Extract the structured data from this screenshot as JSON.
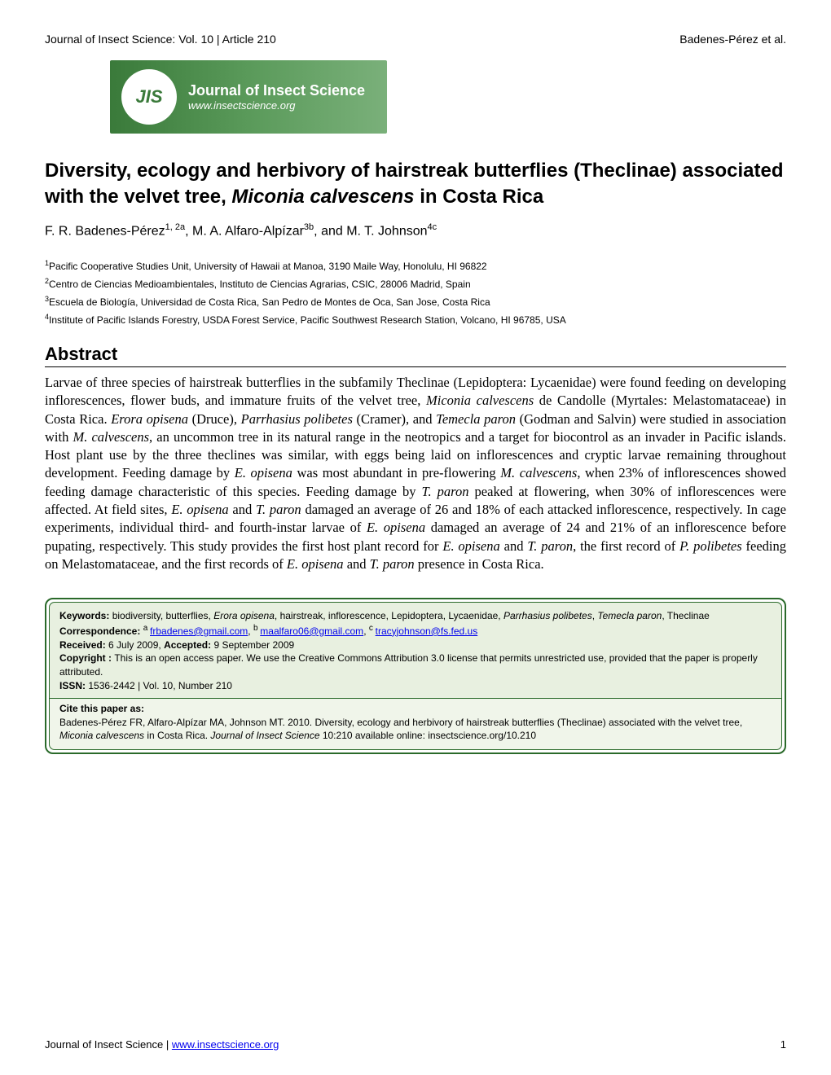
{
  "header": {
    "left": "Journal of Insect Science: Vol. 10 | Article 210",
    "right": "Badenes-Pérez et al."
  },
  "banner": {
    "logo_text": "JIS",
    "title": "Journal of Insect Science",
    "subtitle": "www.insectscience.org",
    "bg_gradient_start": "#3a7a3a",
    "bg_gradient_end": "#7ab07a"
  },
  "title": {
    "prefix": "Diversity, ecology and herbivory of hairstreak butterflies (Theclinae) associated with the velvet tree, ",
    "italic": "Miconia calvescens",
    "suffix": " in Costa Rica"
  },
  "authors": {
    "a1_name": "F. R. Badenes-Pérez",
    "a1_sup": "1, 2a",
    "a2_name": "M. A. Alfaro-Alpízar",
    "a2_sup": "3b",
    "a3_name": "M. T. Johnson",
    "a3_sup": "4c",
    "sep1": ", ",
    "sep2": ", and "
  },
  "affiliations": {
    "a1_sup": "1",
    "a1": "Pacific Cooperative Studies Unit, University of Hawaii at Manoa, 3190 Maile Way, Honolulu, HI 96822",
    "a2_sup": "2",
    "a2": "Centro de Ciencias Medioambientales, Instituto de Ciencias Agrarias, CSIC, 28006 Madrid, Spain",
    "a3_sup": "3",
    "a3": "Escuela de Biología, Universidad de Costa Rica, San Pedro de Montes de Oca, San Jose, Costa Rica",
    "a4_sup": "4",
    "a4": "Institute of Pacific Islands Forestry, USDA Forest Service, Pacific Southwest Research Station, Volcano, HI 96785, USA"
  },
  "abstract": {
    "heading": "Abstract",
    "p1": "Larvae of three species of hairstreak butterflies in the subfamily Theclinae (Lepidoptera: Lycaenidae) were found feeding on developing inflorescences, flower buds, and immature fruits of the velvet tree, ",
    "i1": "Miconia calvescens",
    "p2": " de Candolle (Myrtales: Melastomataceae) in Costa Rica. ",
    "i2": "Erora opisena",
    "p3": " (Druce), ",
    "i3": "Parrhasius polibetes",
    "p4": " (Cramer), and ",
    "i4": "Temecla paron",
    "p5": " (Godman and Salvin) were studied in association with ",
    "i5": "M. calvescens",
    "p6": ", an uncommon tree in its natural range in the neotropics and a target for biocontrol as an invader in Pacific islands. Host plant use by the three theclines was similar, with eggs being laid on inflorescences and cryptic larvae remaining throughout development. Feeding damage by ",
    "i6": "E. opisena",
    "p7": " was most abundant in pre-flowering ",
    "i7": "M. calvescens",
    "p8": ", when 23% of inflorescences showed feeding damage characteristic of this species. Feeding damage by ",
    "i8": "T. paron",
    "p9": " peaked at flowering, when 30% of inflorescences were affected. At field sites, ",
    "i9": "E. opisena",
    "p10": " and ",
    "i10": "T. paron",
    "p11": " damaged an average of 26 and 18% of each attacked inflorescence, respectively. In cage experiments, individual third- and fourth-instar larvae of ",
    "i11": "E. opisena",
    "p12": " damaged an average of 24 and 21% of an inflorescence before pupating, respectively. This study provides the first host plant record for ",
    "i12": "E. opisena",
    "p13": " and ",
    "i13": "T. paron",
    "p14": ", the first record of ",
    "i14": "P. polibetes",
    "p15": " feeding on Melastomataceae, and the first records of ",
    "i15": "E. opisena",
    "p16": " and ",
    "i16": "T. paron",
    "p17": " presence in Costa Rica."
  },
  "infobox": {
    "keywords_label": "Keywords: ",
    "keywords_1": "biodiversity, butterflies, ",
    "keywords_i1": "Erora opisena",
    "keywords_2": ", hairstreak, inflorescence, Lepidoptera, Lycaenidae, ",
    "keywords_i2": "Parrhasius polibetes",
    "keywords_3": ", ",
    "keywords_i3": "Temecla paron",
    "keywords_4": ", Theclinae",
    "corr_label": "Correspondence: ",
    "corr_a_sup": "a ",
    "corr_a": "frbadenes@gmail.com",
    "corr_b_sup": "b ",
    "corr_b": "maalfaro06@gmail.com",
    "corr_c_sup": "c ",
    "corr_c": "tracyjohnson@fs.fed.us",
    "sep": ", ",
    "received_label": "Received: ",
    "received": "6 July 2009, ",
    "accepted_label": "Accepted: ",
    "accepted": "9 September 2009",
    "copyright_label": "Copyright : ",
    "copyright": "This is an open access paper. We use the Creative Commons Attribution 3.0 license that permits unrestricted use, provided that the paper is properly attributed.",
    "issn_label": "ISSN: ",
    "issn": "1536-2442 | Vol. 10, Number 210",
    "cite_label": "Cite this paper as:",
    "cite_1": "Badenes-Pérez FR, Alfaro-Alpízar MA, Johnson MT. 2010. Diversity, ecology and herbivory of hairstreak butterflies (Theclinae) associated with the velvet tree, ",
    "cite_i1": "Miconia calvescens",
    "cite_2": " in Costa Rica. ",
    "cite_i2": "Journal of Insect Science",
    "cite_3": " 10:210 available online: insectscience.org/10.210"
  },
  "footer": {
    "left_prefix": "Journal of Insect Science | ",
    "left_link": "www.insectscience.org",
    "page": "1"
  },
  "colors": {
    "link": "#0000ee",
    "box_border": "#2a6a2a",
    "box_bg": "#e8f0e0"
  }
}
